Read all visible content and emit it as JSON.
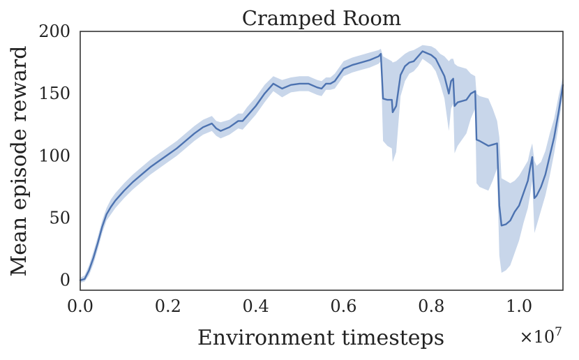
{
  "chart_data": {
    "type": "line",
    "title": "Cramped Room",
    "xlabel": "Environment timesteps",
    "ylabel": "Mean episode reward",
    "x_multiplier": "×10",
    "x_multiplier_exp": "7",
    "xlim": [
      0.0,
      1.1
    ],
    "ylim": [
      -8,
      200
    ],
    "xticks": [
      0.0,
      0.2,
      0.4,
      0.6,
      0.8,
      1.0
    ],
    "xtick_labels": [
      "0.0",
      "0.2",
      "0.4",
      "0.6",
      "0.8",
      "1.0"
    ],
    "yticks": [
      0,
      50,
      100,
      150,
      200
    ],
    "ytick_labels": [
      "0",
      "50",
      "100",
      "150",
      "200"
    ],
    "grid": false,
    "colors": {
      "line": "#4c72b0",
      "band": "#c8d6ea",
      "frame": "#333333"
    },
    "series": [
      {
        "mean": [
          [
            0.0,
            0
          ],
          [
            0.01,
            1
          ],
          [
            0.02,
            8
          ],
          [
            0.03,
            18
          ],
          [
            0.04,
            30
          ],
          [
            0.05,
            43
          ],
          [
            0.06,
            53
          ],
          [
            0.07,
            59
          ],
          [
            0.08,
            64
          ],
          [
            0.09,
            68
          ],
          [
            0.1,
            72
          ],
          [
            0.12,
            79
          ],
          [
            0.14,
            85
          ],
          [
            0.16,
            91
          ],
          [
            0.18,
            96
          ],
          [
            0.2,
            101
          ],
          [
            0.22,
            106
          ],
          [
            0.24,
            112
          ],
          [
            0.26,
            118
          ],
          [
            0.28,
            123
          ],
          [
            0.3,
            126
          ],
          [
            0.31,
            122
          ],
          [
            0.32,
            120
          ],
          [
            0.34,
            123
          ],
          [
            0.36,
            128
          ],
          [
            0.37,
            128
          ],
          [
            0.38,
            132
          ],
          [
            0.4,
            140
          ],
          [
            0.42,
            150
          ],
          [
            0.44,
            158
          ],
          [
            0.46,
            154
          ],
          [
            0.48,
            157
          ],
          [
            0.5,
            158
          ],
          [
            0.52,
            158
          ],
          [
            0.54,
            155
          ],
          [
            0.55,
            154
          ],
          [
            0.56,
            158
          ],
          [
            0.57,
            158
          ],
          [
            0.58,
            160
          ],
          [
            0.59,
            165
          ],
          [
            0.6,
            170
          ],
          [
            0.62,
            173
          ],
          [
            0.64,
            175
          ],
          [
            0.66,
            177
          ],
          [
            0.68,
            180
          ],
          [
            0.685,
            182
          ],
          [
            0.69,
            146
          ],
          [
            0.7,
            145
          ],
          [
            0.71,
            145
          ],
          [
            0.712,
            135
          ],
          [
            0.72,
            140
          ],
          [
            0.73,
            165
          ],
          [
            0.74,
            172
          ],
          [
            0.75,
            175
          ],
          [
            0.76,
            176
          ],
          [
            0.77,
            180
          ],
          [
            0.78,
            184
          ],
          [
            0.8,
            181
          ],
          [
            0.81,
            178
          ],
          [
            0.82,
            171
          ],
          [
            0.83,
            164
          ],
          [
            0.84,
            150
          ],
          [
            0.845,
            160
          ],
          [
            0.85,
            162
          ],
          [
            0.853,
            140
          ],
          [
            0.86,
            143
          ],
          [
            0.88,
            145
          ],
          [
            0.89,
            150
          ],
          [
            0.9,
            152
          ],
          [
            0.903,
            113
          ],
          [
            0.91,
            112
          ],
          [
            0.93,
            108
          ],
          [
            0.94,
            109
          ],
          [
            0.95,
            110
          ],
          [
            0.955,
            60
          ],
          [
            0.96,
            44
          ],
          [
            0.97,
            45
          ],
          [
            0.98,
            48
          ],
          [
            0.99,
            55
          ],
          [
            1.0,
            60
          ],
          [
            1.01,
            70
          ],
          [
            1.02,
            80
          ],
          [
            1.025,
            90
          ],
          [
            1.03,
            99
          ],
          [
            1.035,
            66
          ],
          [
            1.04,
            68
          ],
          [
            1.05,
            75
          ],
          [
            1.06,
            85
          ],
          [
            1.07,
            100
          ],
          [
            1.08,
            115
          ],
          [
            1.09,
            135
          ],
          [
            1.1,
            157
          ]
        ],
        "upper": [
          [
            0.0,
            2
          ],
          [
            0.01,
            4
          ],
          [
            0.02,
            12
          ],
          [
            0.03,
            23
          ],
          [
            0.04,
            35
          ],
          [
            0.05,
            48
          ],
          [
            0.06,
            58
          ],
          [
            0.07,
            65
          ],
          [
            0.08,
            70
          ],
          [
            0.09,
            74
          ],
          [
            0.1,
            78
          ],
          [
            0.12,
            85
          ],
          [
            0.14,
            91
          ],
          [
            0.16,
            97
          ],
          [
            0.18,
            102
          ],
          [
            0.2,
            107
          ],
          [
            0.22,
            112
          ],
          [
            0.24,
            118
          ],
          [
            0.26,
            124
          ],
          [
            0.28,
            129
          ],
          [
            0.3,
            132
          ],
          [
            0.31,
            128
          ],
          [
            0.32,
            127
          ],
          [
            0.34,
            129
          ],
          [
            0.36,
            134
          ],
          [
            0.37,
            134
          ],
          [
            0.38,
            139
          ],
          [
            0.4,
            147
          ],
          [
            0.42,
            157
          ],
          [
            0.44,
            164
          ],
          [
            0.46,
            161
          ],
          [
            0.48,
            163
          ],
          [
            0.5,
            164
          ],
          [
            0.52,
            164
          ],
          [
            0.54,
            161
          ],
          [
            0.55,
            160
          ],
          [
            0.56,
            163
          ],
          [
            0.57,
            163
          ],
          [
            0.58,
            166
          ],
          [
            0.59,
            171
          ],
          [
            0.6,
            176
          ],
          [
            0.62,
            179
          ],
          [
            0.64,
            181
          ],
          [
            0.66,
            183
          ],
          [
            0.68,
            185
          ],
          [
            0.685,
            186
          ],
          [
            0.69,
            180
          ],
          [
            0.7,
            178
          ],
          [
            0.71,
            176
          ],
          [
            0.712,
            175
          ],
          [
            0.72,
            176
          ],
          [
            0.73,
            179
          ],
          [
            0.74,
            182
          ],
          [
            0.75,
            184
          ],
          [
            0.76,
            185
          ],
          [
            0.77,
            187
          ],
          [
            0.78,
            189
          ],
          [
            0.8,
            188
          ],
          [
            0.81,
            186
          ],
          [
            0.82,
            182
          ],
          [
            0.83,
            180
          ],
          [
            0.84,
            176
          ],
          [
            0.845,
            178
          ],
          [
            0.85,
            178
          ],
          [
            0.853,
            174
          ],
          [
            0.86,
            172
          ],
          [
            0.88,
            170
          ],
          [
            0.89,
            166
          ],
          [
            0.9,
            164
          ],
          [
            0.903,
            150
          ],
          [
            0.91,
            148
          ],
          [
            0.93,
            146
          ],
          [
            0.94,
            138
          ],
          [
            0.95,
            128
          ],
          [
            0.955,
            115
          ],
          [
            0.96,
            82
          ],
          [
            0.97,
            80
          ],
          [
            0.98,
            78
          ],
          [
            0.99,
            80
          ],
          [
            1.0,
            84
          ],
          [
            1.01,
            90
          ],
          [
            1.02,
            96
          ],
          [
            1.025,
            104
          ],
          [
            1.03,
            110
          ],
          [
            1.035,
            96
          ],
          [
            1.04,
            92
          ],
          [
            1.05,
            95
          ],
          [
            1.06,
            104
          ],
          [
            1.07,
            118
          ],
          [
            1.08,
            130
          ],
          [
            1.09,
            148
          ],
          [
            1.1,
            164
          ]
        ],
        "lower": [
          [
            0.0,
            -2
          ],
          [
            0.01,
            -1
          ],
          [
            0.02,
            4
          ],
          [
            0.03,
            13
          ],
          [
            0.04,
            25
          ],
          [
            0.05,
            38
          ],
          [
            0.06,
            48
          ],
          [
            0.07,
            53
          ],
          [
            0.08,
            58
          ],
          [
            0.09,
            62
          ],
          [
            0.1,
            66
          ],
          [
            0.12,
            73
          ],
          [
            0.14,
            79
          ],
          [
            0.16,
            85
          ],
          [
            0.18,
            90
          ],
          [
            0.2,
            95
          ],
          [
            0.22,
            100
          ],
          [
            0.24,
            106
          ],
          [
            0.26,
            112
          ],
          [
            0.28,
            117
          ],
          [
            0.3,
            120
          ],
          [
            0.31,
            116
          ],
          [
            0.32,
            114
          ],
          [
            0.34,
            117
          ],
          [
            0.36,
            122
          ],
          [
            0.37,
            121
          ],
          [
            0.38,
            125
          ],
          [
            0.4,
            133
          ],
          [
            0.42,
            143
          ],
          [
            0.44,
            152
          ],
          [
            0.46,
            147
          ],
          [
            0.48,
            151
          ],
          [
            0.5,
            152
          ],
          [
            0.52,
            152
          ],
          [
            0.54,
            149
          ],
          [
            0.55,
            148
          ],
          [
            0.56,
            153
          ],
          [
            0.57,
            153
          ],
          [
            0.58,
            154
          ],
          [
            0.59,
            159
          ],
          [
            0.6,
            164
          ],
          [
            0.62,
            167
          ],
          [
            0.64,
            169
          ],
          [
            0.66,
            171
          ],
          [
            0.68,
            174
          ],
          [
            0.685,
            176
          ],
          [
            0.69,
            112
          ],
          [
            0.7,
            108
          ],
          [
            0.71,
            106
          ],
          [
            0.712,
            95
          ],
          [
            0.72,
            103
          ],
          [
            0.73,
            148
          ],
          [
            0.74,
            160
          ],
          [
            0.75,
            166
          ],
          [
            0.76,
            168
          ],
          [
            0.77,
            172
          ],
          [
            0.78,
            178
          ],
          [
            0.8,
            173
          ],
          [
            0.81,
            168
          ],
          [
            0.82,
            158
          ],
          [
            0.83,
            146
          ],
          [
            0.84,
            120
          ],
          [
            0.845,
            138
          ],
          [
            0.85,
            142
          ],
          [
            0.853,
            102
          ],
          [
            0.86,
            108
          ],
          [
            0.88,
            118
          ],
          [
            0.89,
            130
          ],
          [
            0.9,
            138
          ],
          [
            0.903,
            78
          ],
          [
            0.91,
            75
          ],
          [
            0.93,
            72
          ],
          [
            0.94,
            80
          ],
          [
            0.95,
            90
          ],
          [
            0.955,
            20
          ],
          [
            0.96,
            6
          ],
          [
            0.97,
            8
          ],
          [
            0.98,
            12
          ],
          [
            0.99,
            22
          ],
          [
            1.0,
            32
          ],
          [
            1.01,
            46
          ],
          [
            1.02,
            58
          ],
          [
            1.025,
            68
          ],
          [
            1.03,
            80
          ],
          [
            1.035,
            38
          ],
          [
            1.04,
            44
          ],
          [
            1.05,
            56
          ],
          [
            1.06,
            68
          ],
          [
            1.07,
            84
          ],
          [
            1.08,
            102
          ],
          [
            1.09,
            124
          ],
          [
            1.1,
            150
          ]
        ]
      }
    ]
  }
}
